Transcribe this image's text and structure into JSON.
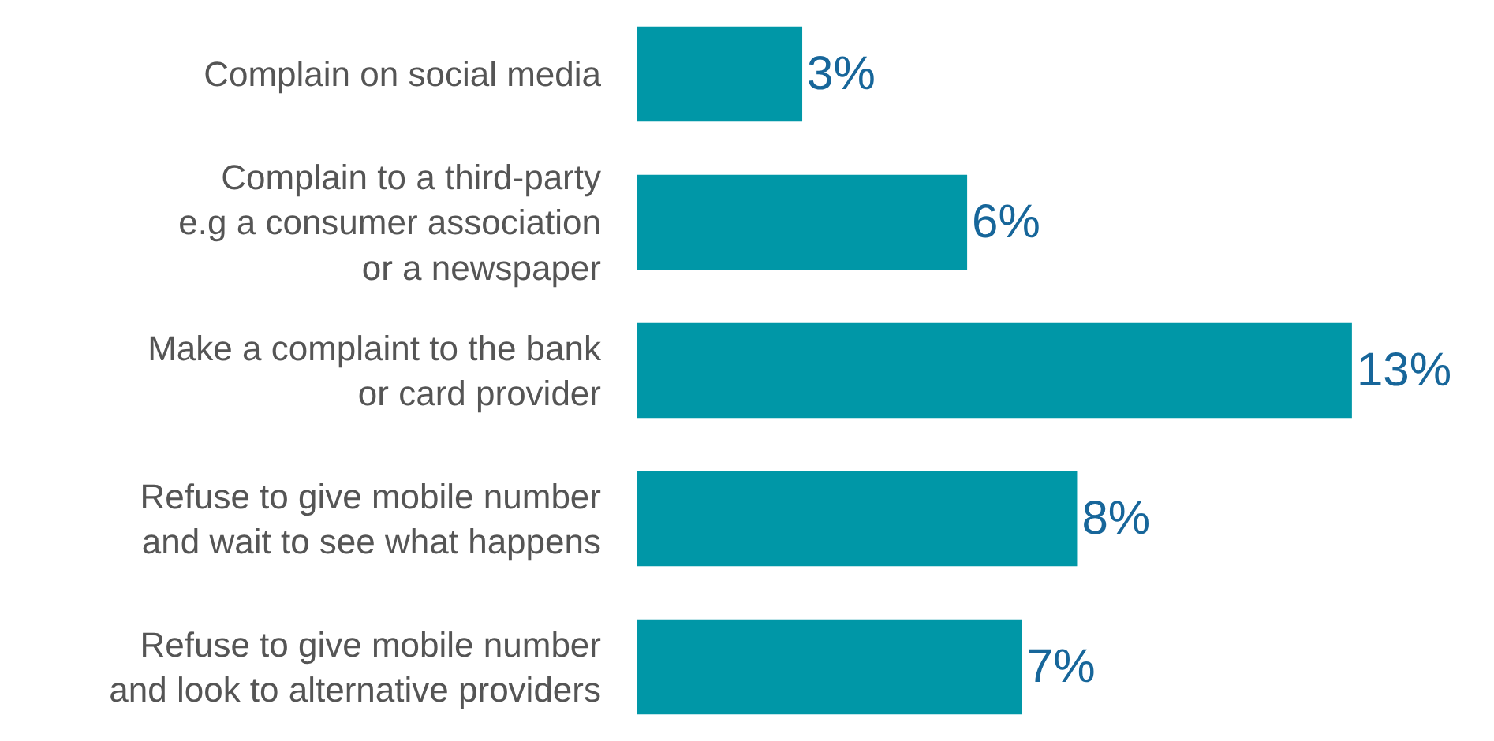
{
  "chart_data": {
    "type": "bar",
    "orientation": "horizontal",
    "categories": [
      "Complain on social media",
      "Complain to a third-party\ne.g a consumer association\nor a newspaper",
      "Make a complaint to the bank\nor card provider",
      "Refuse to give mobile number\nand wait to see what happens",
      "Refuse to give mobile number\nand look to alternative providers"
    ],
    "values": [
      3,
      6,
      13,
      8,
      7
    ],
    "value_labels": [
      "3%",
      "6%",
      "13%",
      "8%",
      "7%"
    ],
    "color": "#0097a7"
  }
}
